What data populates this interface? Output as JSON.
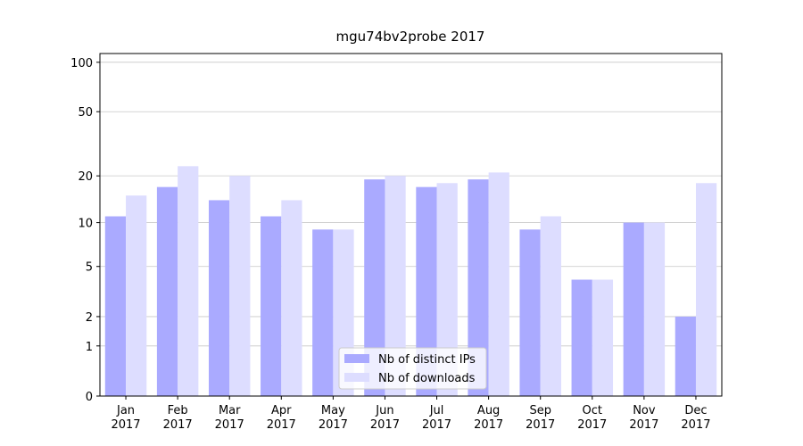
{
  "chart_data": {
    "type": "bar",
    "title": "mgu74bv2probe 2017",
    "yscale": "log1p",
    "categories": [
      "Jan\n2017",
      "Feb\n2017",
      "Mar\n2017",
      "Apr\n2017",
      "May\n2017",
      "Jun\n2017",
      "Jul\n2017",
      "Aug\n2017",
      "Sep\n2017",
      "Oct\n2017",
      "Nov\n2017",
      "Dec\n2017"
    ],
    "series": [
      {
        "name": "Nb of distinct IPs",
        "color": "#aaaaff",
        "values": [
          11,
          17,
          14,
          11,
          9,
          19,
          17,
          19,
          9,
          4,
          10,
          2
        ]
      },
      {
        "name": "Nb of downloads",
        "color": "#ddddff",
        "values": [
          15,
          23,
          20,
          14,
          9,
          20,
          18,
          21,
          11,
          4,
          10,
          18
        ]
      }
    ],
    "ylim": [
      0,
      113
    ],
    "yticks": [
      0,
      1,
      2,
      5,
      10,
      20,
      50,
      100
    ],
    "grid": true,
    "legend": "lower center"
  }
}
